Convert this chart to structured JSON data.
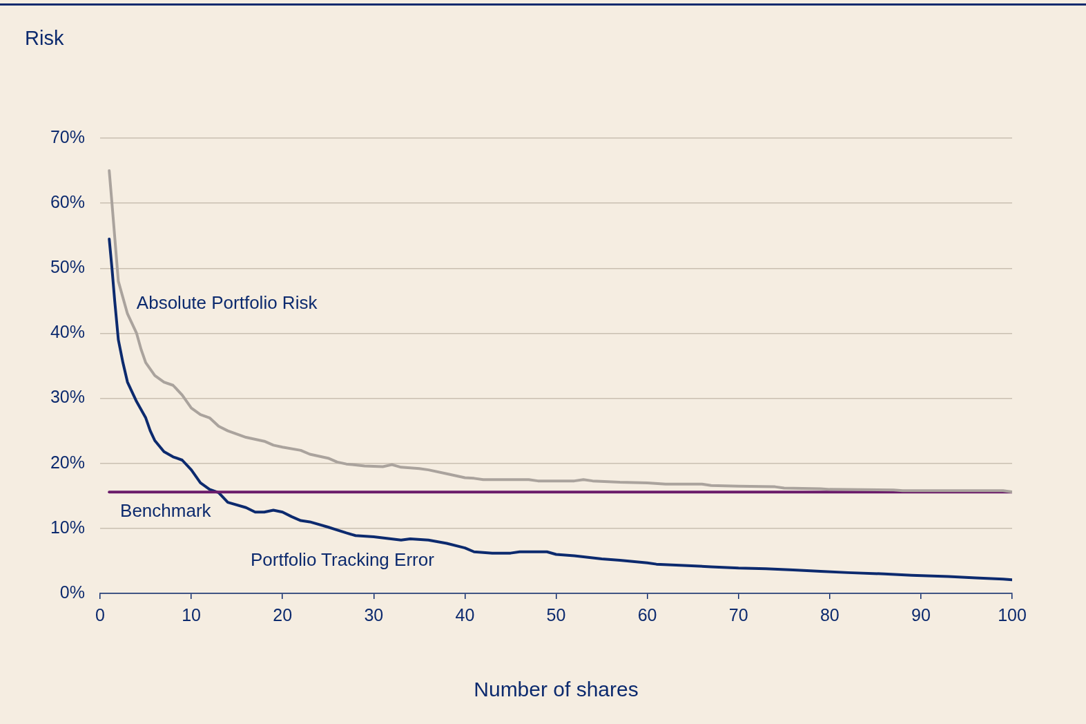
{
  "chart_data": {
    "type": "line",
    "ylabel": "Risk",
    "xlabel": "Number of shares",
    "xlim": [
      0,
      100
    ],
    "xticks": [
      0,
      10,
      20,
      30,
      40,
      50,
      60,
      70,
      80,
      90,
      100
    ],
    "ylim": [
      0,
      70
    ],
    "yticks": [
      {
        "value": 0,
        "label": "0%"
      },
      {
        "value": 10,
        "label": "10%"
      },
      {
        "value": 20,
        "label": "20%"
      },
      {
        "value": 30,
        "label": "30%"
      },
      {
        "value": 40,
        "label": "40%"
      },
      {
        "value": 50,
        "label": "50%"
      },
      {
        "value": 60,
        "label": "60%"
      },
      {
        "value": 70,
        "label": "70%"
      }
    ],
    "grid": "y",
    "legend": false,
    "marker": "none",
    "line_style": "solid",
    "series": [
      {
        "name": "Absolute Portfolio Risk",
        "color": "#aaa39d",
        "x": [
          1,
          1.3,
          2,
          3,
          4,
          4.5,
          5,
          6,
          7,
          8,
          9,
          10,
          11,
          12,
          13,
          14,
          16,
          18,
          19,
          20,
          22,
          23,
          25,
          26,
          27,
          29,
          31,
          32,
          33,
          35,
          36,
          38,
          40,
          41,
          42,
          47,
          48,
          52,
          53,
          54,
          57,
          60,
          62,
          66,
          67,
          70,
          74,
          75,
          79,
          80,
          87,
          88,
          99,
          100
        ],
        "values": [
          65,
          60,
          48,
          43,
          40,
          37.5,
          35.5,
          33.5,
          32.5,
          32,
          30.5,
          28.5,
          27.5,
          27,
          25.7,
          25,
          24,
          23.4,
          22.8,
          22.5,
          22,
          21.4,
          20.8,
          20.2,
          19.9,
          19.6,
          19.5,
          19.8,
          19.4,
          19.2,
          19,
          18.4,
          17.8,
          17.7,
          17.5,
          17.5,
          17.3,
          17.3,
          17.5,
          17.3,
          17.1,
          17,
          16.8,
          16.8,
          16.6,
          16.5,
          16.4,
          16.2,
          16.1,
          16,
          15.9,
          15.8,
          15.8,
          15.6
        ]
      },
      {
        "name": "Benchmark",
        "color": "#6a1b6a",
        "x": [
          1,
          100
        ],
        "values": [
          15.6,
          15.6
        ]
      },
      {
        "name": "Portfolio Tracking Error",
        "color": "#0c2a6e",
        "x": [
          1,
          1.3,
          1.6,
          2,
          2.5,
          3,
          4,
          5,
          5.5,
          6,
          7,
          8,
          9,
          10,
          11,
          12,
          13,
          14,
          16,
          17,
          18,
          19,
          20,
          21,
          22,
          23,
          25,
          27,
          28,
          30,
          33,
          34,
          36,
          38,
          40,
          41,
          43,
          45,
          46,
          49,
          50,
          52,
          55,
          57,
          60,
          61,
          64,
          67,
          70,
          73,
          76,
          79,
          82,
          86,
          89,
          93,
          96,
          99,
          100
        ],
        "values": [
          54.5,
          50,
          45,
          39,
          35.5,
          32.5,
          29.5,
          27,
          25,
          23.5,
          21.8,
          21,
          20.5,
          19,
          17,
          16,
          15.5,
          14,
          13.2,
          12.5,
          12.5,
          12.8,
          12.5,
          11.8,
          11.2,
          11,
          10.2,
          9.3,
          8.9,
          8.7,
          8.2,
          8.4,
          8.2,
          7.7,
          7,
          6.4,
          6.2,
          6.2,
          6.4,
          6.4,
          6,
          5.8,
          5.3,
          5.1,
          4.7,
          4.5,
          4.3,
          4.1,
          3.9,
          3.8,
          3.6,
          3.4,
          3.2,
          3,
          2.8,
          2.6,
          2.4,
          2.2,
          2.1
        ]
      }
    ]
  }
}
